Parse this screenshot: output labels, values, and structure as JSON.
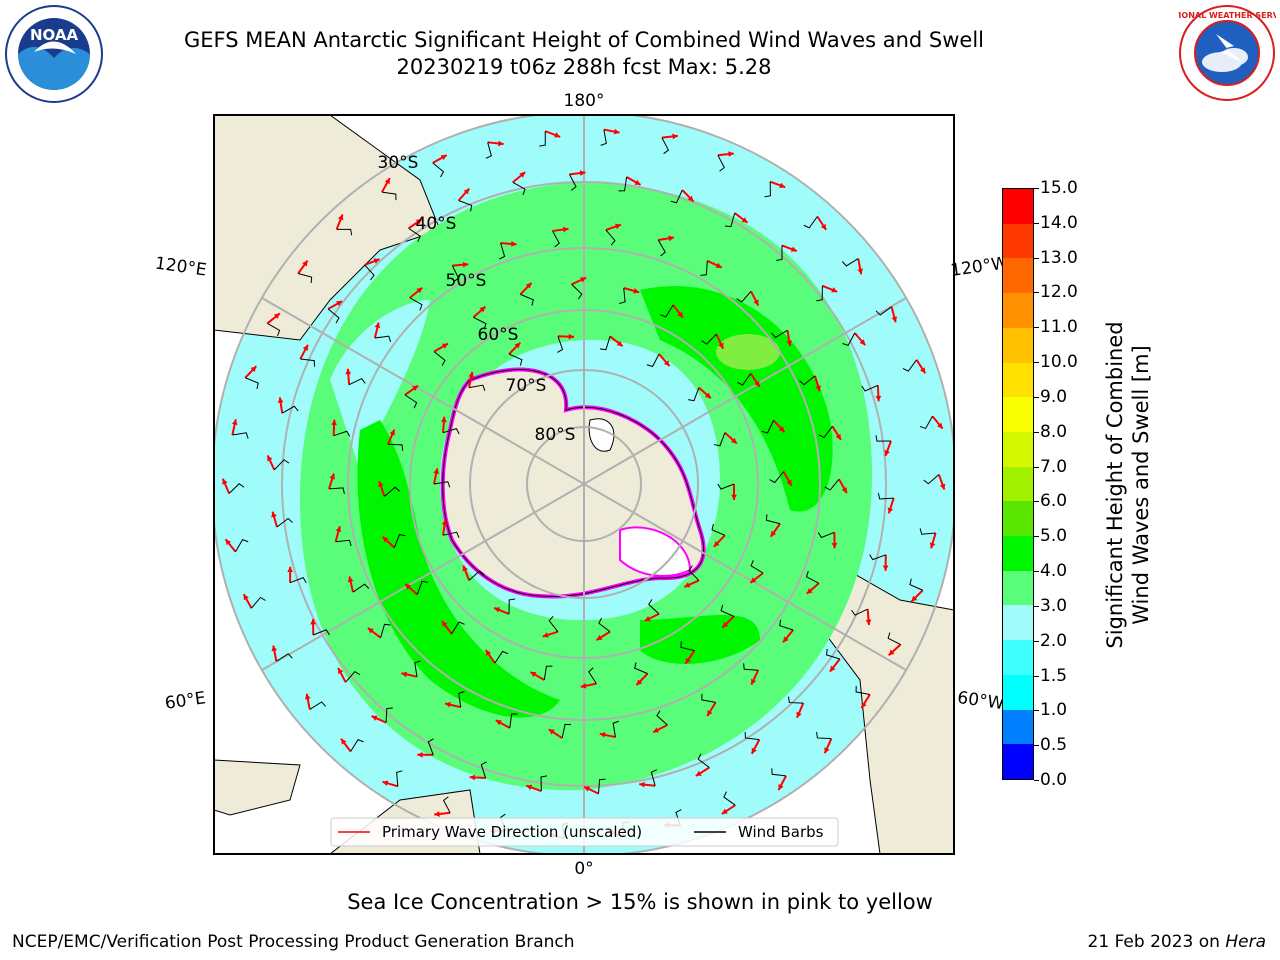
{
  "title_line1": "GEFS MEAN Antarctic Significant Height of Combined Wind Waves and Swell",
  "title_line2": "20230219 t06z 288h fcst   Max: 5.28",
  "logos": {
    "left": {
      "icon": "noaa-logo",
      "text": "NOAA"
    },
    "right": {
      "icon": "nws-logo",
      "text": "NATIONAL WEATHER SERVICE"
    }
  },
  "map": {
    "projection": "south-polar-stereographic",
    "longitude_labels": [
      "180°",
      "120°E",
      "120°W",
      "60°E",
      "60°W",
      "0°"
    ],
    "latitude_labels": [
      "30°S",
      "40°S",
      "50°S",
      "60°S",
      "70°S",
      "80°S"
    ],
    "legend": {
      "primary_wave": "Primary Wave Direction (unscaled)",
      "wind_barbs": "Wind Barbs"
    },
    "colors": {
      "land": "#efebd9",
      "ocean_light": "#9ffcfb",
      "cyan_2_3": "#44ffff",
      "green_3_4": "#5afd79",
      "green_4_5": "#00f500",
      "arrow": "#ff0000",
      "ice": "#ff00ff"
    }
  },
  "colorbar": {
    "label_line1": "Significant Height of Combined",
    "label_line2": "Wind Waves and Swell [m]",
    "ticks": [
      "0.0",
      "0.5",
      "1.0",
      "1.5",
      "2.0",
      "3.0",
      "4.0",
      "5.0",
      "6.0",
      "7.0",
      "8.0",
      "9.0",
      "10.0",
      "11.0",
      "12.0",
      "13.0",
      "14.0",
      "15.0"
    ],
    "colors": [
      "#0000ff",
      "#0080ff",
      "#00ffff",
      "#40ffff",
      "#9ffcfb",
      "#5afd79",
      "#00f500",
      "#5ae600",
      "#a0f000",
      "#d4f800",
      "#f8ff00",
      "#ffe000",
      "#ffc000",
      "#ff9000",
      "#ff6800",
      "#ff3a00",
      "#ff0000"
    ]
  },
  "footer_note": "Sea Ice Concentration > 15% is shown in pink to yellow",
  "credit": "NCEP/EMC/Verification Post Processing Product Generation Branch",
  "date_text": "21 Feb 2023 on ",
  "date_machine": "Hera"
}
